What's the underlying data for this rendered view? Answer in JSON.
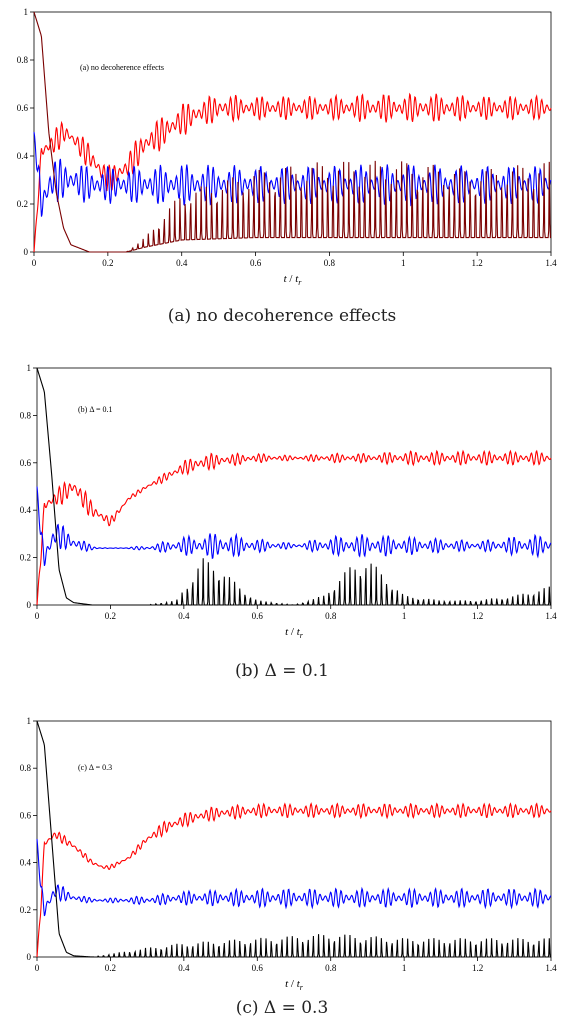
{
  "captions": [
    "(a) no decoherence effects",
    "(b) Δ = 0.1",
    "(c) Δ = 0.3"
  ],
  "xlabel_t": "t",
  "xlabel_slash": " / ",
  "xlabel_sub": "t",
  "xlabel_subscript": "r",
  "chart_data": [
    {
      "type": "line",
      "annotation": "(a) no decoherence effects",
      "xlim": [
        0,
        1.4
      ],
      "ylim": [
        0,
        1
      ],
      "xticks": [
        "0",
        "0.2",
        "0.4",
        "0.6",
        "0.8",
        "1",
        "1.2",
        "1.4"
      ],
      "yticks": [
        "0",
        "0.2",
        "0.4",
        "0.6",
        "0.8",
        "1"
      ],
      "series": [
        {
          "color": "#ff0000",
          "x": [
            0,
            0.01,
            0.02,
            0.05,
            0.08,
            0.1,
            0.15,
            0.2,
            0.25,
            0.3,
            0.35,
            0.4,
            0.45,
            0.5,
            0.6,
            0.7,
            0.8,
            0.9,
            1.0,
            1.1,
            1.2,
            1.3,
            1.4
          ],
          "y": [
            0.0,
            0.2,
            0.42,
            0.45,
            0.5,
            0.48,
            0.4,
            0.3,
            0.35,
            0.45,
            0.5,
            0.55,
            0.58,
            0.6,
            0.6,
            0.6,
            0.6,
            0.6,
            0.6,
            0.6,
            0.6,
            0.6,
            0.6
          ],
          "osc": [
            0,
            0.02,
            0.05,
            0.06,
            0.05,
            0.04,
            0.06,
            0.06,
            0.06,
            0.07,
            0.07,
            0.07,
            0.06,
            0.06,
            0.05,
            0.05,
            0.05,
            0.06,
            0.06,
            0.06,
            0.05,
            0.05,
            0.05
          ]
        },
        {
          "color": "#0000ff",
          "x": [
            0,
            0.01,
            0.02,
            0.05,
            0.1,
            0.15,
            0.2,
            0.3,
            0.4,
            0.6,
            0.8,
            1.0,
            1.2,
            1.4
          ],
          "y": [
            0.5,
            0.35,
            0.2,
            0.3,
            0.3,
            0.28,
            0.28,
            0.28,
            0.28,
            0.28,
            0.28,
            0.28,
            0.28,
            0.28
          ],
          "osc": [
            0,
            0.06,
            0.12,
            0.1,
            0.08,
            0.08,
            0.08,
            0.08,
            0.09,
            0.08,
            0.08,
            0.09,
            0.08,
            0.08
          ]
        },
        {
          "color": "#7a0000",
          "x": [
            0,
            0.02,
            0.04,
            0.06,
            0.08,
            0.1,
            0.15,
            0.25,
            0.3,
            0.4,
            0.6,
            0.8,
            1.0,
            1.2,
            1.4
          ],
          "y": [
            1.0,
            0.9,
            0.5,
            0.25,
            0.1,
            0.03,
            0.0,
            0.0,
            0.02,
            0.05,
            0.06,
            0.06,
            0.06,
            0.06,
            0.06
          ],
          "osc": [
            0,
            0,
            0,
            0,
            0,
            0,
            0,
            0,
            0.01,
            0.05,
            0.07,
            0.08,
            0.08,
            0.07,
            0.08
          ]
        }
      ]
    },
    {
      "type": "line",
      "annotation": "(b)  Δ = 0.1",
      "xlim": [
        0,
        1.4
      ],
      "ylim": [
        0,
        1
      ],
      "xticks": [
        "0",
        "0.2",
        "0.4",
        "0.6",
        "0.8",
        "1",
        "1.2",
        "1.4"
      ],
      "yticks": [
        "0",
        "0.2",
        "0.4",
        "0.6",
        "0.8",
        "1"
      ],
      "series": [
        {
          "color": "#ff0000",
          "x": [
            0,
            0.01,
            0.02,
            0.05,
            0.1,
            0.15,
            0.2,
            0.25,
            0.3,
            0.35,
            0.4,
            0.45,
            0.5,
            0.6,
            0.7,
            0.8,
            0.9,
            1.0,
            1.1,
            1.2,
            1.3,
            1.4
          ],
          "y": [
            0.0,
            0.2,
            0.42,
            0.45,
            0.5,
            0.4,
            0.35,
            0.45,
            0.5,
            0.54,
            0.58,
            0.6,
            0.61,
            0.62,
            0.62,
            0.62,
            0.62,
            0.62,
            0.62,
            0.62,
            0.62,
            0.62
          ],
          "osc": [
            0,
            0.03,
            0.04,
            0.04,
            0.05,
            0.04,
            0.02,
            0.01,
            0.01,
            0.02,
            0.03,
            0.04,
            0.03,
            0.02,
            0.01,
            0.02,
            0.02,
            0.03,
            0.03,
            0.03,
            0.03,
            0.03
          ]
        },
        {
          "color": "#0000ff",
          "x": [
            0,
            0.01,
            0.02,
            0.05,
            0.1,
            0.15,
            0.2,
            0.3,
            0.4,
            0.5,
            0.6,
            0.7,
            0.8,
            0.9,
            1.0,
            1.1,
            1.2,
            1.3,
            1.4
          ],
          "y": [
            0.5,
            0.3,
            0.2,
            0.3,
            0.26,
            0.24,
            0.24,
            0.24,
            0.25,
            0.25,
            0.25,
            0.25,
            0.25,
            0.25,
            0.25,
            0.25,
            0.25,
            0.25,
            0.25
          ],
          "osc": [
            0,
            0.04,
            0.08,
            0.06,
            0.04,
            0.01,
            0.0,
            0.01,
            0.04,
            0.06,
            0.03,
            0.01,
            0.04,
            0.05,
            0.04,
            0.03,
            0.02,
            0.04,
            0.05
          ]
        },
        {
          "color": "#000000",
          "x": [
            0,
            0.02,
            0.04,
            0.06,
            0.08,
            0.1,
            0.15,
            0.3,
            0.38,
            0.42,
            0.45,
            0.5,
            0.55,
            0.6,
            0.7,
            0.78,
            0.85,
            0.9,
            0.95,
            1.0,
            1.1,
            1.2,
            1.3,
            1.4
          ],
          "y": [
            1.0,
            0.9,
            0.55,
            0.15,
            0.03,
            0.01,
            0.0,
            0.0,
            0.0,
            0.0,
            0.0,
            0.0,
            0.0,
            0.0,
            0.0,
            0.0,
            0.0,
            0.0,
            0.0,
            0.0,
            0.0,
            0.0,
            0.0,
            0.0
          ],
          "osc": [
            0,
            0,
            0,
            0,
            0,
            0,
            0,
            0,
            0.005,
            0.03,
            0.05,
            0.04,
            0.02,
            0.005,
            0.0,
            0.01,
            0.04,
            0.05,
            0.03,
            0.01,
            0.005,
            0.005,
            0.01,
            0.02
          ]
        }
      ]
    },
    {
      "type": "line",
      "annotation": "(c)  Δ = 0.3",
      "xlim": [
        0,
        1.4
      ],
      "ylim": [
        0,
        1
      ],
      "xticks": [
        "0",
        "0.2",
        "0.4",
        "0.6",
        "0.8",
        "1",
        "1.2",
        "1.4"
      ],
      "yticks": [
        "0",
        "0.2",
        "0.4",
        "0.6",
        "0.8",
        "1"
      ],
      "series": [
        {
          "color": "#ff0000",
          "x": [
            0,
            0.01,
            0.02,
            0.05,
            0.1,
            0.15,
            0.18,
            0.2,
            0.25,
            0.3,
            0.35,
            0.4,
            0.45,
            0.5,
            0.6,
            0.7,
            0.8,
            0.9,
            1.0,
            1.1,
            1.2,
            1.3,
            1.4
          ],
          "y": [
            0.0,
            0.2,
            0.48,
            0.52,
            0.47,
            0.4,
            0.38,
            0.38,
            0.42,
            0.5,
            0.55,
            0.58,
            0.6,
            0.61,
            0.62,
            0.62,
            0.62,
            0.62,
            0.62,
            0.62,
            0.62,
            0.62,
            0.62
          ],
          "osc": [
            0,
            0.02,
            0.02,
            0.02,
            0.02,
            0.01,
            0.01,
            0.01,
            0.01,
            0.02,
            0.03,
            0.03,
            0.03,
            0.03,
            0.03,
            0.03,
            0.03,
            0.03,
            0.03,
            0.03,
            0.03,
            0.03,
            0.03
          ]
        },
        {
          "color": "#0000ff",
          "x": [
            0,
            0.01,
            0.02,
            0.05,
            0.1,
            0.15,
            0.2,
            0.3,
            0.4,
            0.6,
            0.8,
            1.0,
            1.2,
            1.4
          ],
          "y": [
            0.5,
            0.3,
            0.2,
            0.28,
            0.25,
            0.24,
            0.24,
            0.24,
            0.25,
            0.25,
            0.25,
            0.25,
            0.25,
            0.25
          ],
          "osc": [
            0,
            0.03,
            0.06,
            0.04,
            0.02,
            0.01,
            0.01,
            0.02,
            0.03,
            0.04,
            0.04,
            0.04,
            0.04,
            0.04
          ]
        },
        {
          "color": "#000000",
          "x": [
            0,
            0.02,
            0.04,
            0.06,
            0.08,
            0.1,
            0.15,
            0.3,
            0.4,
            0.6,
            0.8,
            1.0,
            1.2,
            1.4
          ],
          "y": [
            1.0,
            0.9,
            0.5,
            0.1,
            0.02,
            0.005,
            0.0,
            0.0,
            0.0,
            0.0,
            0.0,
            0.0,
            0.0,
            0.0
          ],
          "osc": [
            0,
            0,
            0,
            0,
            0,
            0,
            0,
            0.01,
            0.015,
            0.02,
            0.025,
            0.02,
            0.02,
            0.02
          ]
        }
      ]
    }
  ]
}
